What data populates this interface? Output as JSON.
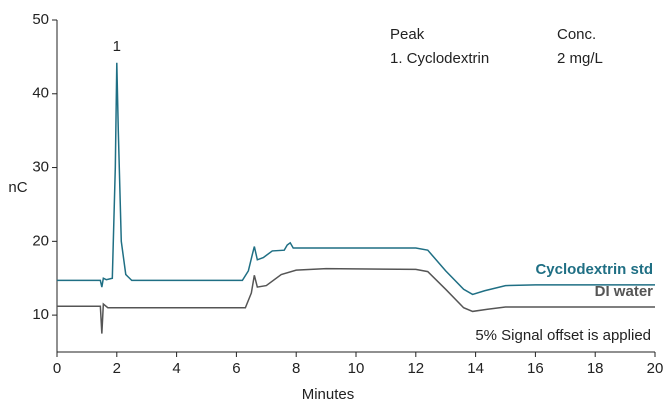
{
  "chart_data": {
    "type": "line",
    "xlabel": "Minutes",
    "ylabel": "nC",
    "xlim": [
      0,
      20
    ],
    "xticks": [
      0,
      2,
      4,
      6,
      8,
      10,
      12,
      14,
      16,
      18,
      20
    ],
    "ylim": [
      5,
      50
    ],
    "yticks": [
      10,
      20,
      30,
      40,
      50
    ],
    "grid": false,
    "peak_annotation": "1",
    "peak_table": {
      "header": [
        "Peak",
        "Conc."
      ],
      "rows": [
        [
          "1. Cyclodextrin",
          "2 mg/L"
        ]
      ]
    },
    "note": "5% Signal offset is applied",
    "series": [
      {
        "name": "Cyclodextrin std",
        "color": "#1f6f84",
        "x": [
          0,
          1.45,
          1.5,
          1.55,
          1.65,
          1.85,
          1.95,
          2.0,
          2.05,
          2.15,
          2.3,
          2.5,
          6.2,
          6.4,
          6.55,
          6.6,
          6.7,
          6.9,
          7.2,
          7.6,
          7.7,
          7.8,
          7.9,
          8.5,
          12,
          12.4,
          13.0,
          13.6,
          13.9,
          14.3,
          15,
          16,
          20
        ],
        "values": [
          14.7,
          14.7,
          13.8,
          15.0,
          14.8,
          15.0,
          30,
          44.2,
          35,
          20,
          15.5,
          14.7,
          14.7,
          16,
          18.5,
          19.3,
          17.5,
          17.8,
          18.7,
          18.8,
          19.5,
          19.8,
          19.1,
          19.1,
          19.1,
          18.8,
          16,
          13.5,
          12.8,
          13.3,
          14.0,
          14.1,
          14.1
        ]
      },
      {
        "name": "DI water",
        "color": "#555555",
        "x": [
          0,
          1.45,
          1.5,
          1.55,
          1.7,
          6.3,
          6.5,
          6.6,
          6.7,
          7,
          7.5,
          8,
          9,
          12,
          12.4,
          13,
          13.6,
          13.9,
          14.4,
          15,
          20
        ],
        "values": [
          11.2,
          11.2,
          7.5,
          11.5,
          11.0,
          11.0,
          13,
          15.4,
          13.8,
          14,
          15.5,
          16.1,
          16.3,
          16.2,
          15.9,
          13.5,
          11,
          10.5,
          10.8,
          11.1,
          11.1
        ]
      }
    ]
  }
}
